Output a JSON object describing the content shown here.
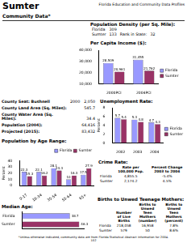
{
  "header": {
    "county": "Sumter",
    "series_title": "Florida Education and Community Data Profiles",
    "section": "Community Data*"
  },
  "population_density": {
    "title": "Population Density (per Sq. Mile):",
    "rows": [
      [
        "Florida",
        "309"
      ],
      [
        "Sumter",
        "133"
      ]
    ],
    "rank_label": "Rank in State:",
    "rank": "32"
  },
  "county_info": [
    [
      "County Seat: Bushnell",
      "2000",
      "2,050"
    ],
    [
      "County Land Area (Sq. Miles):",
      "545.7"
    ],
    [
      "County Water Area (Sq. Miles):",
      "34.4"
    ],
    [
      "Population (2004):",
      "64,416"
    ],
    [
      "Projected (2015):",
      "83,432"
    ]
  ],
  "chart_data": [
    {
      "type": "bar",
      "title": "Per Capita Income ($):",
      "categories": [
        "2000PCI",
        "2004PCI"
      ],
      "series": [
        {
          "name": "Florida",
          "color": "#9999ff",
          "values": [
            28509,
            31455
          ],
          "value_labels": [
            "28,509",
            "31,455"
          ]
        },
        {
          "name": "Sumter",
          "color": "#993366",
          "values": [
            20961,
            21762
          ],
          "value_labels": [
            "20,961",
            "21,762"
          ]
        }
      ],
      "ylim": [
        10000,
        40000
      ],
      "yticks": [
        {
          "value": 10000,
          "label": "10,000"
        },
        {
          "value": 20000,
          "label": "20,000"
        },
        {
          "value": 30000,
          "label": "30,000"
        },
        {
          "value": 40000,
          "label": "40,000"
        }
      ],
      "grid": false,
      "legend": "right",
      "data_labels": true
    },
    {
      "type": "bar",
      "title": "Unemployment Rate:",
      "y_label": "Percent",
      "categories": [
        "2002",
        "2003",
        "2004"
      ],
      "series": [
        {
          "name": "Florida",
          "color": "#9999ff",
          "values": [
            5.7,
            5.3,
            4.7
          ]
        },
        {
          "name": "Sumter",
          "color": "#993366",
          "values": [
            5.4,
            4.8,
            4.3
          ]
        }
      ],
      "ylim": [
        0,
        8
      ],
      "yticks": [
        0,
        2,
        4,
        6,
        8
      ],
      "grid": false,
      "legend": "right",
      "data_labels": true
    },
    {
      "type": "bar",
      "title": "Population by Age Range:",
      "y_label": "Percent",
      "categories": [
        "0-17",
        "18-34",
        "35-54",
        "55-64",
        "65+"
      ],
      "series": [
        {
          "name": "Florida",
          "color": "#9999ff",
          "values": [
            22.3,
            22.1,
            28.1,
            10.0,
            17.5
          ]
        },
        {
          "name": "Sumter",
          "color": "#993366",
          "values": [
            15.3,
            16.2,
            24.3,
            16.3,
            27.9
          ]
        }
      ],
      "ylim": [
        0,
        40
      ],
      "yticks": [
        0,
        10,
        20,
        30,
        40
      ],
      "grid": false,
      "legend": "top-right",
      "data_labels": true
    },
    {
      "type": "bar",
      "title": "Median Age:",
      "orientation": "horizontal",
      "categories": [
        "Florida",
        "Sumter"
      ],
      "values": [
        38.7,
        46.3
      ],
      "colors": [
        "#9999ff",
        "#993366"
      ],
      "xlim": [
        0,
        50
      ],
      "grid": false,
      "data_labels": true,
      "tick_labels": "y"
    }
  ],
  "crime_rate": {
    "title": "Crime Rate:",
    "columns": [
      "Rate per 100,000 Pop.",
      "Percent Change 2003 to 2004"
    ],
    "rows": [
      [
        "Florida",
        "4,855.5",
        "-5.4%"
      ],
      [
        "Sumter",
        "2,174.2",
        "4.5%"
      ]
    ]
  },
  "births": {
    "title": "Births to Unwed Teenage Mothers:",
    "columns": [
      "Number of Live Births",
      "Births to Unwed Teen Mothers (number)",
      "Births to Unwed Teen Mothers (percent)"
    ],
    "rows": [
      [
        "Florida",
        "218,058",
        "16,958",
        "7.8%"
      ],
      [
        "Sumter",
        "579",
        "50",
        "8.6%"
      ]
    ]
  },
  "footer": {
    "note": "*Unless otherwise indicated, community data are from Florida Statistical Abstract information for 2004.",
    "page": "102"
  }
}
